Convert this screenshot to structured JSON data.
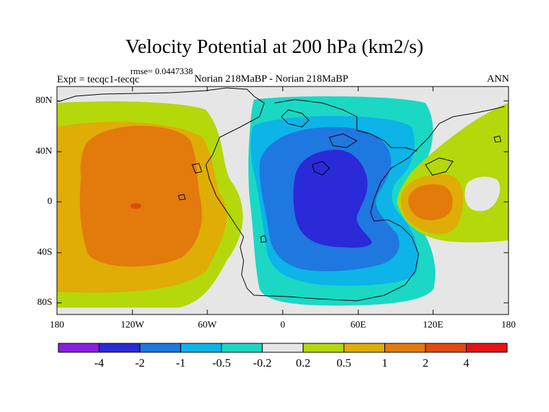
{
  "title": "Velocity Potential at 200 hPa (km2/s)",
  "rmse": "rmse= 0.0447338",
  "expt": "Expt = tecqc1-tecqc",
  "case": "Norian 218MaBP - Norian 218MaBP",
  "season": "ANN",
  "lat_labels": [
    "80N",
    "40N",
    "0",
    "40S",
    "80S"
  ],
  "lon_labels": [
    "180",
    "120W",
    "60W",
    "0",
    "60E",
    "120E",
    "180"
  ],
  "colorbar": {
    "labels": [
      "-4",
      "-2",
      "-1",
      "-0.5",
      "-0.2",
      "0.2",
      "0.5",
      "1",
      "2",
      "4"
    ],
    "colors": [
      "#8a1ee0",
      "#2a2ad8",
      "#1e78e0",
      "#0cb4e8",
      "#1ad8c4",
      "#e6e6e6",
      "#b4d80a",
      "#e0ac06",
      "#e27a0c",
      "#e24a10",
      "#e61414"
    ]
  }
}
